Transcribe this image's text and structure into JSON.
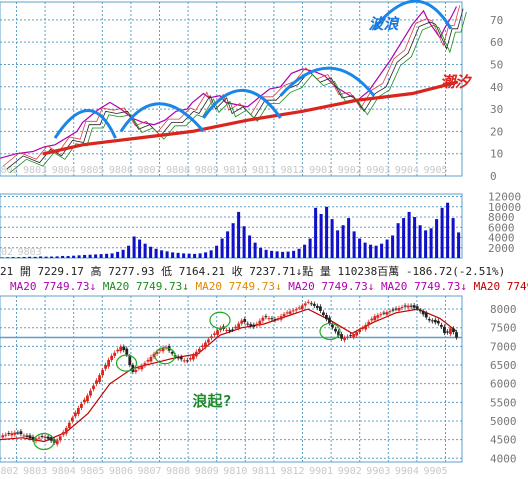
{
  "colors": {
    "background": "#ffffff",
    "grid": "#5fa0c8",
    "axis_text": "#777777",
    "wave_arc": "#1a86e8",
    "tide_line": "#d9251d",
    "annotation_blue": "#1a7ad9",
    "annotation_red": "#d9251d",
    "annotation_green": "#1f8a2a",
    "up_candle": "#d9251d",
    "down_candle": "#222222",
    "volume_bar": "#1010c8",
    "ma_magenta": "#b000b0",
    "ma_green": "#1e8a1e",
    "ma_orange": "#e08a00",
    "ma_red": "#c00000",
    "circle_green": "#22aa22",
    "header_dark": "#222222"
  },
  "chart_data": [
    {
      "type": "line",
      "name": "rsi_panel",
      "y_ticks": [
        10,
        20,
        30,
        40,
        50,
        60,
        70
      ],
      "ylim": [
        0,
        78
      ],
      "x_tick_labels": [
        "9802",
        "9803",
        "9804",
        "9805",
        "9806",
        "9807",
        "9808",
        "9809",
        "9810",
        "9811",
        "9812",
        "9901",
        "9902",
        "9903",
        "9904",
        "9905"
      ],
      "series_main": [
        [
          0,
          8
        ],
        [
          3,
          10
        ],
        [
          6,
          11
        ],
        [
          8,
          13
        ],
        [
          10,
          14
        ],
        [
          12,
          17
        ],
        [
          14,
          20
        ],
        [
          15,
          24
        ],
        [
          17,
          28
        ],
        [
          18,
          30
        ],
        [
          20,
          33
        ],
        [
          22,
          30
        ],
        [
          24,
          26
        ],
        [
          26,
          24
        ],
        [
          28,
          23
        ],
        [
          30,
          25
        ],
        [
          32,
          29
        ],
        [
          34,
          30
        ],
        [
          35,
          33
        ],
        [
          37,
          37
        ],
        [
          38,
          35
        ],
        [
          40,
          36
        ],
        [
          41,
          33
        ],
        [
          43,
          32
        ],
        [
          45,
          31
        ],
        [
          47,
          35
        ],
        [
          49,
          39
        ],
        [
          51,
          40
        ],
        [
          53,
          46
        ],
        [
          55,
          48
        ],
        [
          57,
          47
        ],
        [
          59,
          45
        ],
        [
          61,
          40
        ],
        [
          63,
          37
        ],
        [
          65,
          34
        ],
        [
          67,
          38
        ],
        [
          69,
          45
        ],
        [
          71,
          52
        ],
        [
          73,
          60
        ],
        [
          75,
          68
        ],
        [
          77,
          74
        ],
        [
          78,
          69
        ],
        [
          80,
          62
        ],
        [
          81,
          67
        ],
        [
          82,
          71
        ],
        [
          83,
          76
        ]
      ],
      "tide_line": [
        [
          8,
          10
        ],
        [
          15,
          14
        ],
        [
          25,
          17
        ],
        [
          35,
          20
        ],
        [
          45,
          25
        ],
        [
          55,
          29
        ],
        [
          65,
          34
        ],
        [
          75,
          37
        ],
        [
          83,
          42
        ]
      ],
      "wave_arcs": [
        {
          "from": 10,
          "peak_x": 16.5,
          "peak_y": 31,
          "to": 21
        },
        {
          "from": 22,
          "peak_x": 28.5,
          "peak_y": 34,
          "to": 37
        },
        {
          "from": 37,
          "peak_x": 44,
          "peak_y": 40,
          "to": 51
        },
        {
          "from": 51,
          "peak_x": 60,
          "peak_y": 50,
          "to": 68
        },
        {
          "from": 68,
          "peak_x": 76,
          "peak_y": 80,
          "to": 82
        }
      ],
      "annotations": [
        {
          "text": "波浪",
          "x": 67,
          "y": 66,
          "color": "annotation_blue"
        },
        {
          "text": "潮汐",
          "x": 80,
          "y": 40,
          "color": "annotation_red"
        }
      ]
    },
    {
      "type": "bar",
      "name": "volume_panel",
      "y_ticks": [
        2000,
        4000,
        6000,
        8000,
        10000,
        12000
      ],
      "ylim": [
        0,
        12500
      ],
      "x_tick_labels": [
        "9802",
        "9803"
      ],
      "values": [
        120,
        150,
        180,
        160,
        200,
        240,
        220,
        300,
        260,
        280,
        320,
        400,
        380,
        450,
        520,
        600,
        640,
        700,
        760,
        820,
        900,
        1200,
        1600,
        2400,
        4200,
        3600,
        2800,
        2200,
        1800,
        1500,
        1300,
        1100,
        1000,
        900,
        850,
        800,
        900,
        1100,
        1500,
        2400,
        3800,
        5200,
        6800,
        9000,
        6200,
        4400,
        3000,
        2000,
        1600,
        1400,
        1300,
        1200,
        1250,
        1400,
        1800,
        2600,
        3800,
        9800,
        8600,
        10000,
        7600,
        5400,
        6400,
        7800,
        5200,
        3800,
        3000,
        2600,
        2400,
        2800,
        3600,
        4400,
        6800,
        7800,
        9000,
        8000,
        6400,
        5400,
        5800,
        7600,
        9800,
        10800,
        7800,
        5000
      ]
    },
    {
      "type": "line",
      "name": "price_panel",
      "y_ticks": [
        4000,
        4500,
        5000,
        5500,
        6000,
        6500,
        7000,
        7500,
        8000
      ],
      "ylim": [
        3900,
        8350
      ],
      "x_tick_labels": [
        "9802",
        "9803",
        "9804",
        "9805",
        "9806",
        "9807",
        "9808",
        "9809",
        "9810",
        "9811",
        "9812",
        "9901",
        "9902",
        "9903",
        "9904",
        "9905"
      ],
      "current_line": 7237.71,
      "series_price": [
        [
          0,
          4600
        ],
        [
          3,
          4700
        ],
        [
          6,
          4500
        ],
        [
          8,
          4600
        ],
        [
          10,
          4400
        ],
        [
          12,
          4800
        ],
        [
          14,
          5300
        ],
        [
          16,
          5700
        ],
        [
          18,
          6200
        ],
        [
          20,
          6700
        ],
        [
          22,
          7000
        ],
        [
          23,
          6800
        ],
        [
          24,
          6300
        ],
        [
          26,
          6500
        ],
        [
          28,
          6800
        ],
        [
          30,
          7000
        ],
        [
          32,
          6700
        ],
        [
          34,
          6600
        ],
        [
          36,
          6900
        ],
        [
          38,
          7200
        ],
        [
          40,
          7500
        ],
        [
          42,
          7400
        ],
        [
          44,
          7700
        ],
        [
          46,
          7500
        ],
        [
          48,
          7800
        ],
        [
          50,
          7700
        ],
        [
          52,
          7900
        ],
        [
          54,
          8000
        ],
        [
          56,
          8200
        ],
        [
          58,
          8000
        ],
        [
          60,
          7600
        ],
        [
          62,
          7200
        ],
        [
          64,
          7300
        ],
        [
          66,
          7500
        ],
        [
          68,
          7800
        ],
        [
          70,
          7900
        ],
        [
          72,
          8000
        ],
        [
          74,
          8100
        ],
        [
          76,
          8000
        ],
        [
          78,
          7700
        ],
        [
          80,
          7600
        ],
        [
          81,
          7300
        ],
        [
          82,
          7500
        ],
        [
          83,
          7237
        ]
      ],
      "series_ma": [
        [
          0,
          4500
        ],
        [
          4,
          4550
        ],
        [
          8,
          4450
        ],
        [
          12,
          4700
        ],
        [
          16,
          5200
        ],
        [
          20,
          6000
        ],
        [
          24,
          6400
        ],
        [
          28,
          6550
        ],
        [
          32,
          6700
        ],
        [
          36,
          6800
        ],
        [
          40,
          7300
        ],
        [
          44,
          7500
        ],
        [
          48,
          7600
        ],
        [
          52,
          7800
        ],
        [
          56,
          8000
        ],
        [
          60,
          7700
        ],
        [
          64,
          7350
        ],
        [
          68,
          7650
        ],
        [
          72,
          7900
        ],
        [
          76,
          8000
        ],
        [
          80,
          7750
        ],
        [
          83,
          7400
        ]
      ],
      "circles": [
        [
          8,
          4450
        ],
        [
          23,
          6550
        ],
        [
          30,
          6750
        ],
        [
          40,
          7700
        ],
        [
          60,
          7400
        ]
      ],
      "annotations": [
        {
          "text": "浪起?",
          "x": 35,
          "y": 5400,
          "color": "annotation_green"
        }
      ]
    }
  ],
  "header": {
    "line1": "21 開 7229.17 高 7277.93 低 7164.21 收 7237.71↓點 量 110238百萬 -186.72(-2.51%)",
    "line2_a": "MA20",
    "line2_b": "7749.73↓",
    "line2_c": "MA20",
    "line2_d": "7749.73↓",
    "line2_e": "MA20",
    "line2_f": "7749.73↓",
    "line2_g": "MA20",
    "line2_h": "7749.73↓",
    "line2_i": "MA20",
    "line2_j": "7749.73↓",
    "line2_k": "MA20",
    "line2_l": "7749.73"
  }
}
